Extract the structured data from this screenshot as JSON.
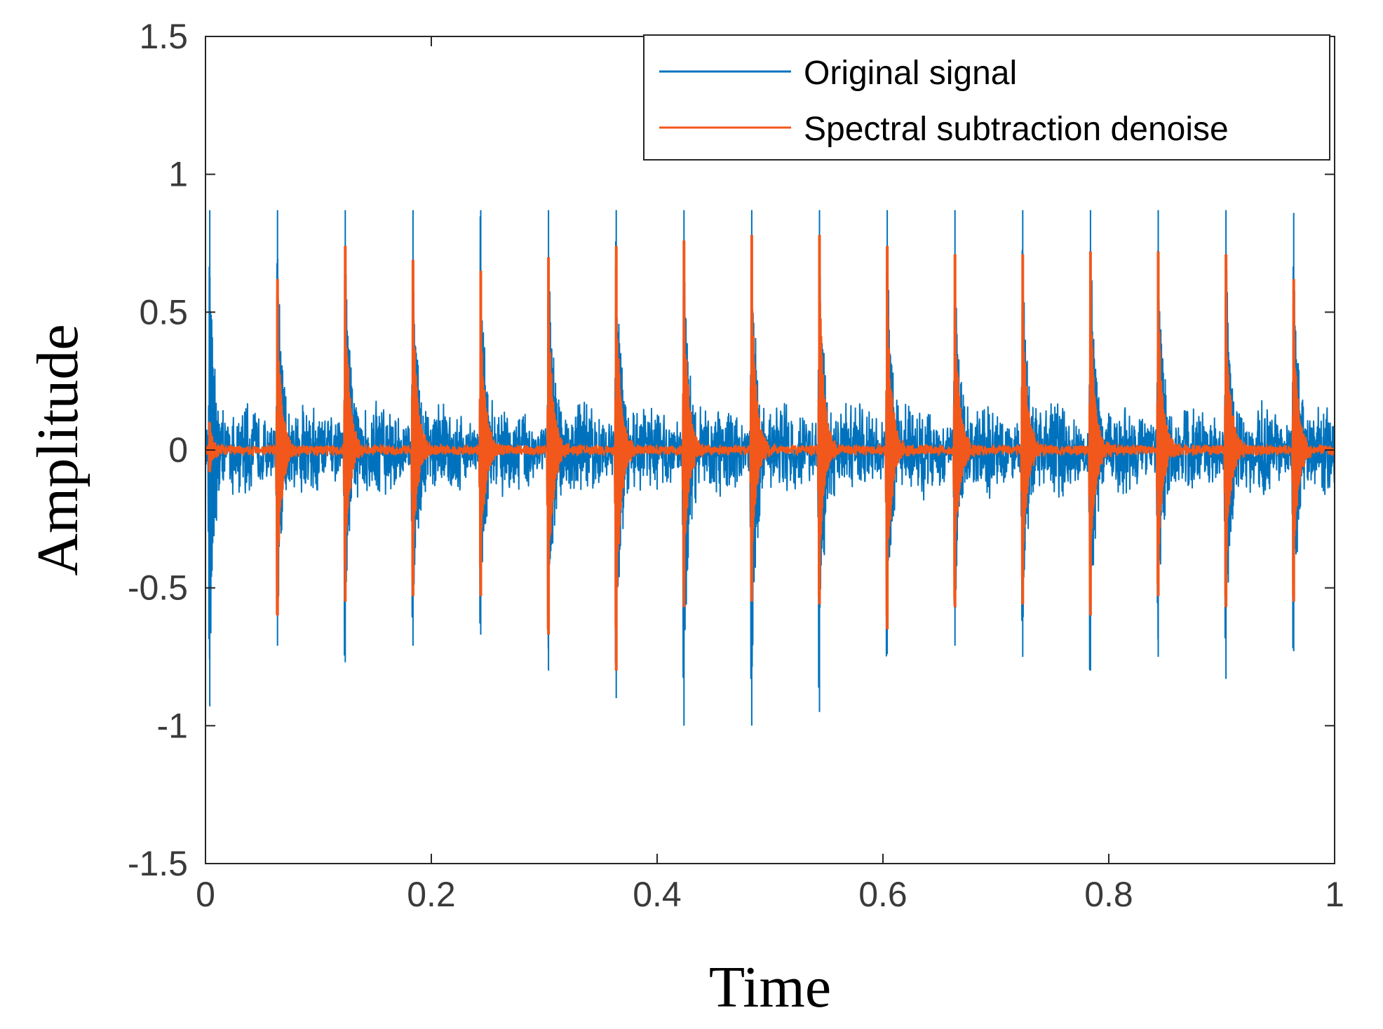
{
  "chart_data": {
    "type": "line",
    "title": "",
    "xlabel": "Time",
    "ylabel": "Amplitude",
    "xlim": [
      0,
      1
    ],
    "ylim": [
      -1.5,
      1.5
    ],
    "x_ticks": [
      0,
      0.2,
      0.4,
      0.6,
      0.8,
      1
    ],
    "x_tick_labels": [
      "0",
      "0.2",
      "0.4",
      "0.6",
      "0.8",
      "1"
    ],
    "y_ticks": [
      1.5,
      1,
      0.5,
      0,
      -0.5,
      -1,
      -1.5
    ],
    "y_tick_labels": [
      "1.5",
      "1",
      "0.5",
      "0",
      "-0.5",
      "-1",
      "-1.5"
    ],
    "grid": false,
    "legend_position": "top-right",
    "impulse_times": [
      0.003,
      0.063,
      0.123,
      0.183,
      0.243,
      0.303,
      0.363,
      0.423,
      0.483,
      0.543,
      0.603,
      0.663,
      0.723,
      0.783,
      0.843,
      0.903,
      0.963
    ],
    "series": [
      {
        "name": "Original signal",
        "color": "#0072BD",
        "noise_band": 0.2,
        "peaks_max": [
          0.87,
          0.87,
          0.87,
          0.87,
          0.87,
          0.87,
          0.87,
          0.87,
          0.87,
          0.87,
          0.87,
          0.87,
          0.87,
          0.87,
          0.87,
          0.87,
          0.86
        ],
        "peaks_min": [
          -0.93,
          -0.71,
          -0.77,
          -0.71,
          -0.67,
          -0.8,
          -0.9,
          -1.0,
          -1.0,
          -0.95,
          -0.74,
          -0.71,
          -0.75,
          -0.8,
          -0.75,
          -0.83,
          -0.73
        ]
      },
      {
        "name": "Spectral subtraction denoise",
        "color": "#F2581B",
        "noise_band": 0.02,
        "peaks_max": [
          0.1,
          0.62,
          0.74,
          0.69,
          0.65,
          0.7,
          0.74,
          0.76,
          0.78,
          0.78,
          0.74,
          0.71,
          0.71,
          0.72,
          0.72,
          0.71,
          0.62
        ],
        "peaks_min": [
          -0.08,
          -0.6,
          -0.55,
          -0.53,
          -0.53,
          -0.67,
          -0.8,
          -0.57,
          -0.55,
          -0.56,
          -0.65,
          -0.57,
          -0.56,
          -0.6,
          -0.53,
          -0.57,
          -0.55
        ]
      }
    ]
  }
}
